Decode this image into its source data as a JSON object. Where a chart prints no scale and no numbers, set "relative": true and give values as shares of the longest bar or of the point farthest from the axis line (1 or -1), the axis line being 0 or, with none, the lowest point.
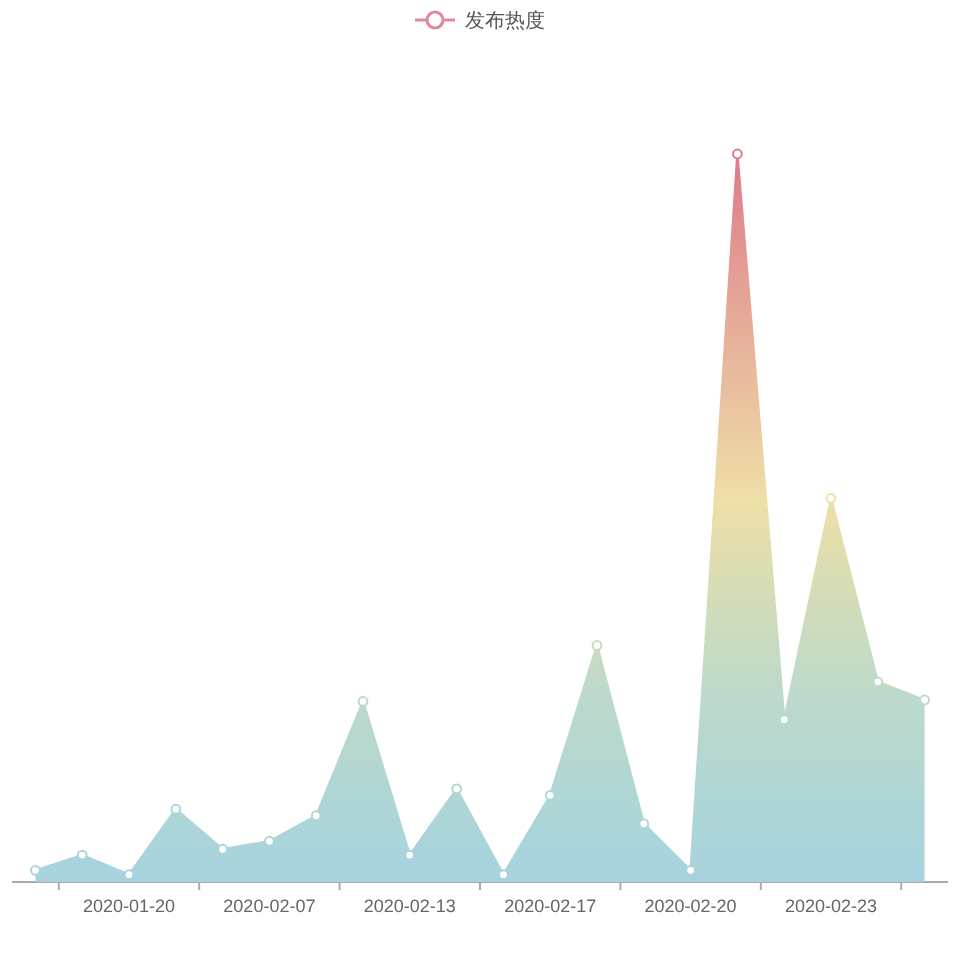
{
  "chart_data": {
    "type": "area",
    "legend": "top",
    "marker": "circle",
    "relative": true,
    "categories": [
      null,
      null,
      "2020-01-20",
      null,
      null,
      "2020-02-07",
      null,
      null,
      "2020-02-13",
      null,
      null,
      "2020-02-17",
      null,
      null,
      "2020-02-20",
      null,
      null,
      "2020-02-23",
      null,
      null
    ],
    "series": [
      {
        "name": "发布热度",
        "color": "#e0899a",
        "values": [
          0.016,
          0.037,
          0.01,
          0.1,
          0.045,
          0.056,
          0.091,
          0.248,
          0.037,
          0.128,
          0.01,
          0.119,
          0.325,
          0.08,
          0.016,
          1,
          0.223,
          0.527,
          0.275,
          0.25
        ],
        "colors": [
          "#a9d3dd",
          "#aad4dc",
          "#a8d3de",
          "#aed6d6",
          "#aad4dc",
          "#abd4db",
          "#add5d7",
          "#bcd9cb",
          "#aad4dc",
          "#b0d6d4",
          "#a8d3de",
          "#afd6d5",
          "#c8dbc1",
          "#acd5d8",
          "#a9d3dd",
          "#de7a8c",
          "#bad8cd",
          "#eedfa6",
          "#c0dac7",
          "#bcd9cb"
        ]
      }
    ]
  }
}
